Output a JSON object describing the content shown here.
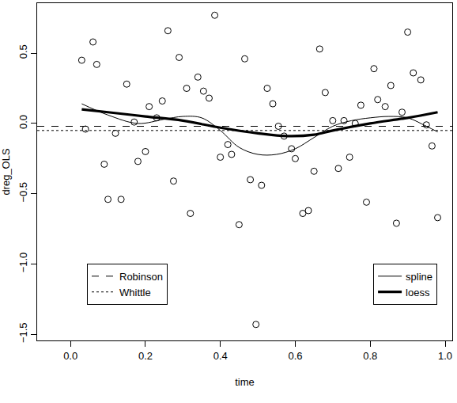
{
  "chart_data": {
    "type": "scatter",
    "x_label": "time",
    "y_label": "dreg_OLS",
    "xlim": [
      -0.089,
      1.019
    ],
    "ylim": [
      -1.544,
      0.856
    ],
    "xticks": [
      {
        "value": 0,
        "label": "0.0"
      },
      0.2,
      0.4,
      0.6,
      0.8,
      {
        "value": 1,
        "label": "1.0"
      }
    ],
    "yticks": [
      {
        "value": -1.5,
        "label": "−1.5"
      },
      {
        "value": -1,
        "label": "−1.0"
      },
      {
        "value": -0.5,
        "label": "−0.5"
      },
      {
        "value": 0,
        "label": "0.0"
      },
      0.5
    ],
    "grid": false,
    "series": [
      {
        "type": "scatter",
        "marker": "open circle",
        "color": "#000000",
        "x": [
          0.03,
          0.04,
          0.06,
          0.07,
          0.09,
          0.1,
          0.12,
          0.135,
          0.15,
          0.17,
          0.18,
          0.2,
          0.21,
          0.23,
          0.245,
          0.26,
          0.275,
          0.29,
          0.31,
          0.32,
          0.34,
          0.355,
          0.37,
          0.385,
          0.4,
          0.42,
          0.43,
          0.45,
          0.465,
          0.48,
          0.495,
          0.51,
          0.525,
          0.54,
          0.555,
          0.57,
          0.59,
          0.6,
          0.62,
          0.635,
          0.65,
          0.665,
          0.68,
          0.7,
          0.715,
          0.73,
          0.745,
          0.76,
          0.775,
          0.79,
          0.81,
          0.82,
          0.84,
          0.855,
          0.87,
          0.885,
          0.9,
          0.915,
          0.935,
          0.95,
          0.965,
          0.98
        ],
        "values": [
          0.45,
          -0.04,
          0.58,
          0.42,
          -0.29,
          -0.54,
          -0.07,
          -0.54,
          0.28,
          0.01,
          -0.27,
          -0.2,
          0.12,
          0.04,
          0.16,
          0.66,
          -0.41,
          0.47,
          0.25,
          -0.64,
          0.33,
          0.23,
          0.18,
          0.77,
          -0.24,
          -0.15,
          -0.22,
          -0.72,
          0.46,
          -0.4,
          -1.43,
          -0.44,
          0.25,
          0.14,
          -0.02,
          -0.09,
          -0.18,
          -0.25,
          -0.64,
          -0.62,
          -0.34,
          0.53,
          0.22,
          0.02,
          -0.32,
          0.02,
          -0.24,
          0.0,
          0.13,
          -0.56,
          0.39,
          0.17,
          0.12,
          0.27,
          -0.71,
          0.08,
          0.65,
          0.36,
          0.31,
          -0.01,
          -0.16,
          -0.67
        ]
      },
      {
        "name": "Robinson",
        "type": "hline",
        "line_style": "dashed",
        "color": "#000000",
        "legend": "bottom left",
        "values": [
          -0.02
        ]
      },
      {
        "name": "Whittle",
        "type": "hline",
        "line_style": "dotted",
        "color": "#000000",
        "legend": "bottom left",
        "values": [
          -0.05
        ]
      },
      {
        "name": "spline",
        "type": "line",
        "line_style": "solid",
        "color": "#000000",
        "legend": "bottom right",
        "x": [
          0.03,
          0.1,
          0.18,
          0.25,
          0.3,
          0.35,
          0.4,
          0.45,
          0.5,
          0.55,
          0.6,
          0.65,
          0.7,
          0.75,
          0.8,
          0.85,
          0.9,
          0.95,
          0.98
        ],
        "values": [
          0.14,
          0.06,
          0.0,
          0.03,
          0.05,
          0.04,
          -0.05,
          -0.17,
          -0.22,
          -0.22,
          -0.18,
          -0.1,
          -0.02,
          0.02,
          0.04,
          0.05,
          0.04,
          -0.02,
          -0.06
        ]
      },
      {
        "name": "loess",
        "type": "line",
        "line_style": "thick",
        "color": "#000000",
        "legend": "bottom right",
        "x": [
          0.03,
          0.1,
          0.2,
          0.3,
          0.4,
          0.5,
          0.58,
          0.65,
          0.7,
          0.8,
          0.9,
          0.98
        ],
        "values": [
          0.1,
          0.08,
          0.05,
          0.02,
          -0.03,
          -0.07,
          -0.09,
          -0.08,
          -0.05,
          0.0,
          0.04,
          0.08
        ]
      }
    ]
  }
}
